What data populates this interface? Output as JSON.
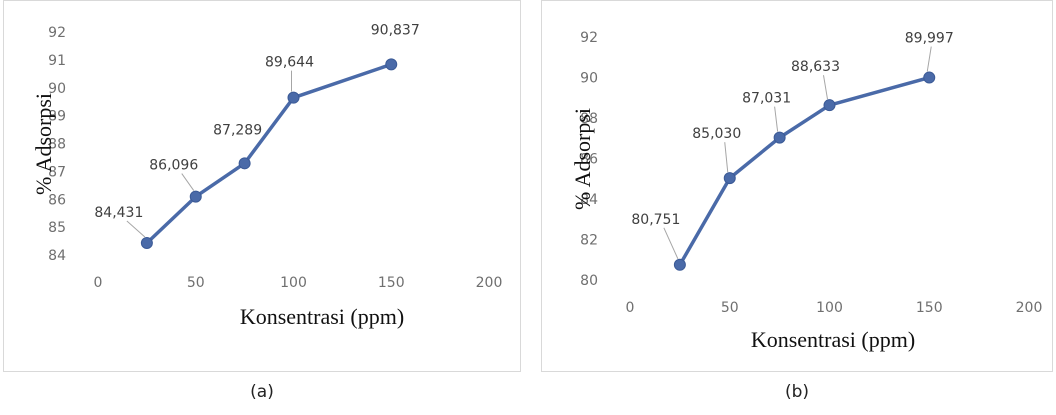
{
  "chart_data": [
    {
      "type": "scatter",
      "panel_label": "(a)",
      "xlabel": "Konsentrasi (ppm)",
      "ylabel": "% Adsorpsi",
      "xlim": [
        0,
        200
      ],
      "ylim": [
        84,
        92
      ],
      "xticks": [
        "0",
        "50",
        "100",
        "150",
        "200"
      ],
      "yticks": [
        "84",
        "85",
        "86",
        "87",
        "88",
        "89",
        "90",
        "91",
        "92"
      ],
      "grid": false,
      "x": [
        25,
        50,
        75,
        100,
        150
      ],
      "y": [
        84.431,
        86.096,
        87.289,
        89.644,
        90.837
      ],
      "data_labels": [
        "84,431",
        "86,096",
        "87,289",
        "89,644",
        "90,837"
      ],
      "line_color": "#4a6aa8",
      "marker_color": "#4a6aa8"
    },
    {
      "type": "scatter",
      "panel_label": "(b)",
      "xlabel": "Konsentrasi (ppm)",
      "ylabel": "% Adsorpsi",
      "xlim": [
        0,
        200
      ],
      "ylim": [
        80,
        92
      ],
      "xticks": [
        "0",
        "50",
        "100",
        "150",
        "200"
      ],
      "yticks": [
        "80",
        "82",
        "84",
        "86",
        "88",
        "90",
        "92"
      ],
      "grid": false,
      "x": [
        25,
        50,
        75,
        100,
        150
      ],
      "y": [
        80.751,
        85.03,
        87.031,
        88.633,
        89.997
      ],
      "data_labels": [
        "80,751",
        "85,030",
        "87,031",
        "88,633",
        "89,997"
      ],
      "line_color": "#4a6aa8",
      "marker_color": "#4a6aa8"
    }
  ]
}
